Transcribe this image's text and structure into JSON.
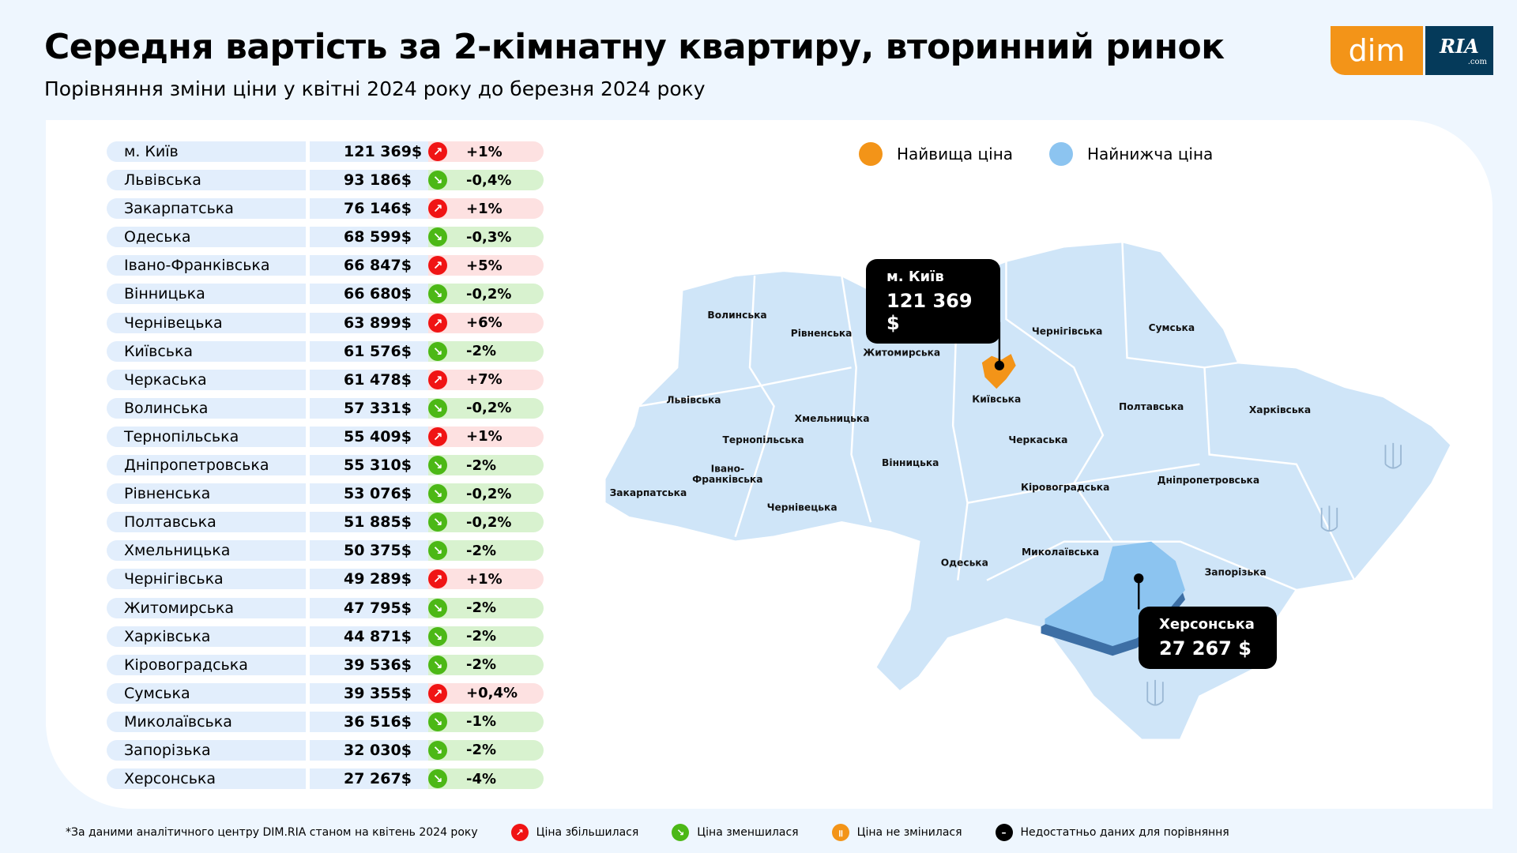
{
  "title": "Середня вартість за 2-кімнатну квартиру, вторинний ринок",
  "subtitle": "Порівняння зміни ціни у квітні 2024 року до березня 2024 року",
  "logo": {
    "left": "dim",
    "right": "RIA",
    "right_sub": ".com"
  },
  "colors": {
    "up": "#f01414",
    "down": "#4cb816",
    "unchanged": "#f39418",
    "nodata": "#000000",
    "highest": "#f39418",
    "lowest": "#8cc4f0",
    "map": "#cfe5f8"
  },
  "legend": {
    "highest": "Найвища ціна",
    "lowest": "Найнижча ціна"
  },
  "rows": [
    {
      "name": "м. Київ",
      "price": "121 369$",
      "change": "+1%",
      "dir": "up"
    },
    {
      "name": "Львівська",
      "price": "93 186$",
      "change": "-0,4%",
      "dir": "down"
    },
    {
      "name": "Закарпатська",
      "price": "76 146$",
      "change": "+1%",
      "dir": "up"
    },
    {
      "name": "Одеська",
      "price": "68 599$",
      "change": "-0,3%",
      "dir": "down"
    },
    {
      "name": "Івано-Франківська",
      "price": "66 847$",
      "change": "+5%",
      "dir": "up"
    },
    {
      "name": "Вінницька",
      "price": "66 680$",
      "change": "-0,2%",
      "dir": "down"
    },
    {
      "name": "Чернівецька",
      "price": "63 899$",
      "change": "+6%",
      "dir": "up"
    },
    {
      "name": "Київська",
      "price": "61 576$",
      "change": "-2%",
      "dir": "down"
    },
    {
      "name": "Черкаська",
      "price": "61 478$",
      "change": "+7%",
      "dir": "up"
    },
    {
      "name": "Волинська",
      "price": "57 331$",
      "change": "-0,2%",
      "dir": "down"
    },
    {
      "name": "Тернопільська",
      "price": "55 409$",
      "change": "+1%",
      "dir": "up"
    },
    {
      "name": "Дніпропетровська",
      "price": "55 310$",
      "change": "-2%",
      "dir": "down"
    },
    {
      "name": "Рівненська",
      "price": "53 076$",
      "change": "-0,2%",
      "dir": "down"
    },
    {
      "name": "Полтавська",
      "price": "51 885$",
      "change": "-0,2%",
      "dir": "down"
    },
    {
      "name": "Хмельницька",
      "price": "50 375$",
      "change": "-2%",
      "dir": "down"
    },
    {
      "name": "Чернігівська",
      "price": "49 289$",
      "change": "+1%",
      "dir": "up"
    },
    {
      "name": "Житомирська",
      "price": "47 795$",
      "change": "-2%",
      "dir": "down"
    },
    {
      "name": "Харківська",
      "price": "44 871$",
      "change": "-2%",
      "dir": "down"
    },
    {
      "name": "Кіровоградська",
      "price": "39 536$",
      "change": "-2%",
      "dir": "down"
    },
    {
      "name": "Сумська",
      "price": "39 355$",
      "change": "+0,4%",
      "dir": "up"
    },
    {
      "name": "Миколаївська",
      "price": "36 516$",
      "change": "-1%",
      "dir": "down"
    },
    {
      "name": "Запорізька",
      "price": "32 030$",
      "change": "-2%",
      "dir": "down"
    },
    {
      "name": "Херсонська",
      "price": "27 267$",
      "change": "-4%",
      "dir": "down"
    }
  ],
  "map_labels": [
    "Волинська",
    "Рівненська",
    "Житомирська",
    "Чернігівська",
    "Сумська",
    "Львівська",
    "Київська",
    "Полтавська",
    "Харківська",
    "Тернопільська",
    "Хмельницька",
    "Черкаська",
    "Вінницька",
    "Івано-",
    "Франківська",
    "Закарпатська",
    "Чернівецька",
    "Кіровоградська",
    "Дніпропетровська",
    "Одеська",
    "Миколаївська",
    "Запорізька"
  ],
  "callouts": {
    "kyiv": {
      "name": "м. Київ",
      "value": "121 369 $"
    },
    "kherson": {
      "name": "Херсонська",
      "value": "27 267 $"
    }
  },
  "footer": {
    "note": "*За даними аналітичного центру DIM.RIA станом на квітень 2024 року",
    "up": "Ціна збільшилася",
    "down": "Ціна зменшилася",
    "same": "Ціна не змінилася",
    "nodata": "Недостатньо даних для порівняння"
  }
}
